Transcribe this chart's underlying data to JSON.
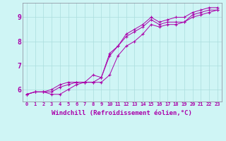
{
  "background_color": "#cff5f5",
  "grid_color": "#aadddd",
  "line_color": "#aa00aa",
  "marker": "+",
  "xlabel": "Windchill (Refroidissement éolien,°C)",
  "xlabel_color": "#aa00aa",
  "xlabel_fontsize": 6.5,
  "ylabel_ticks": [
    6,
    7,
    8,
    9
  ],
  "xlim": [
    -0.5,
    23.5
  ],
  "ylim": [
    5.5,
    9.6
  ],
  "xtick_labels": [
    "0",
    "1",
    "2",
    "3",
    "4",
    "5",
    "6",
    "7",
    "8",
    "9",
    "10",
    "11",
    "12",
    "13",
    "14",
    "15",
    "16",
    "17",
    "18",
    "19",
    "20",
    "21",
    "22",
    "23"
  ],
  "series": [
    [
      5.8,
      5.9,
      5.9,
      5.9,
      6.1,
      6.2,
      6.3,
      6.3,
      6.3,
      6.5,
      7.5,
      7.8,
      8.2,
      8.4,
      8.6,
      8.9,
      8.7,
      8.8,
      8.8,
      8.8,
      9.1,
      9.2,
      9.3,
      9.3
    ],
    [
      5.8,
      5.9,
      5.9,
      5.8,
      5.8,
      6.0,
      6.2,
      6.3,
      6.3,
      6.3,
      6.6,
      7.4,
      7.8,
      8.0,
      8.3,
      8.7,
      8.6,
      8.7,
      8.7,
      8.8,
      9.0,
      9.1,
      9.2,
      9.3
    ],
    [
      5.8,
      5.9,
      5.9,
      6.0,
      6.2,
      6.3,
      6.3,
      6.3,
      6.6,
      6.5,
      7.4,
      7.8,
      8.3,
      8.5,
      8.7,
      9.0,
      8.8,
      8.9,
      9.0,
      9.0,
      9.2,
      9.3,
      9.4,
      9.4
    ]
  ],
  "figsize": [
    3.2,
    2.0
  ],
  "dpi": 100
}
